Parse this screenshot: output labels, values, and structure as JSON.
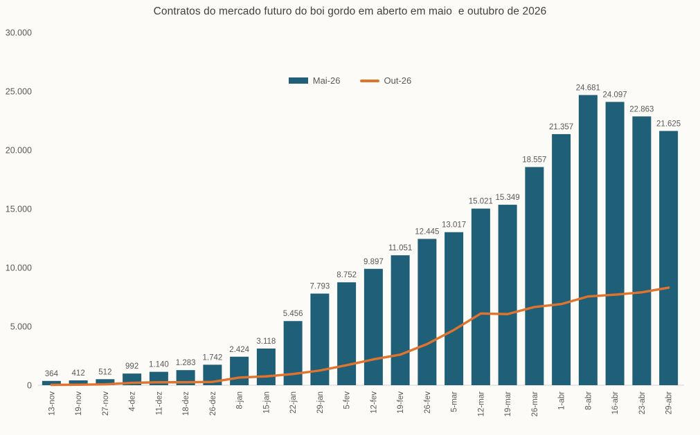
{
  "page": {
    "background_color": "#FCFBF8"
  },
  "chart_data": {
    "type": "bar",
    "subtype": "bar+line-combo",
    "title": "Contratos do mercado futuro do boi gordo em aberto em maio  e outubro de 2026",
    "title_color": "#404040",
    "grid": false,
    "legend_position": "top-center",
    "categories": [
      "13-nov",
      "19-nov",
      "27-nov",
      "4-dez",
      "11-dez",
      "18-dez",
      "26-dez",
      "8-jan",
      "15-jan",
      "22-jan",
      "29-jan",
      "5-fev",
      "12-fev",
      "19-fev",
      "26-fev",
      "5-mar",
      "12-mar",
      "19-mar",
      "26-mar",
      "1-abr",
      "8-abr",
      "16-abr",
      "23-abr",
      "29-abr"
    ],
    "series": [
      {
        "name": "Mai-26",
        "type": "bar",
        "color": "#1F5F78",
        "values": [
          364,
          412,
          512,
          992,
          1140,
          1283,
          1742,
          2424,
          3118,
          5456,
          7793,
          8752,
          9897,
          11051,
          12445,
          13017,
          15021,
          15349,
          18557,
          21357,
          24681,
          24097,
          22863,
          21625
        ],
        "value_labels": [
          "364",
          "412",
          "512",
          "992",
          "1.140",
          "1.283",
          "1.742",
          "2.424",
          "3.118",
          "5.456",
          "7.793",
          "8.752",
          "9.897",
          "11.051",
          "12.445",
          "13.017",
          "15.021",
          "15.349",
          "18.557",
          "21.357",
          "24.681",
          "24.097",
          "22.863",
          "21.625"
        ]
      },
      {
        "name": "Out-26",
        "type": "line",
        "color": "#E0742F",
        "values": [
          30,
          40,
          80,
          200,
          250,
          250,
          280,
          650,
          750,
          950,
          1250,
          1700,
          2200,
          2600,
          3500,
          4700,
          6100,
          6050,
          6650,
          6900,
          7550,
          7700,
          7900,
          8300
        ]
      }
    ],
    "y_axis": {
      "min": 0,
      "max": 30000,
      "step": 5000,
      "tick_labels": [
        "0",
        "5.000",
        "10.000",
        "15.000",
        "20.000",
        "25.000",
        "30.000"
      ],
      "label_color": "#595959"
    },
    "x_axis": {
      "label_rotation_deg": -90,
      "label_color": "#595959",
      "axis_line_color": "#D9D9D9"
    },
    "data_label_color": "#595959"
  }
}
